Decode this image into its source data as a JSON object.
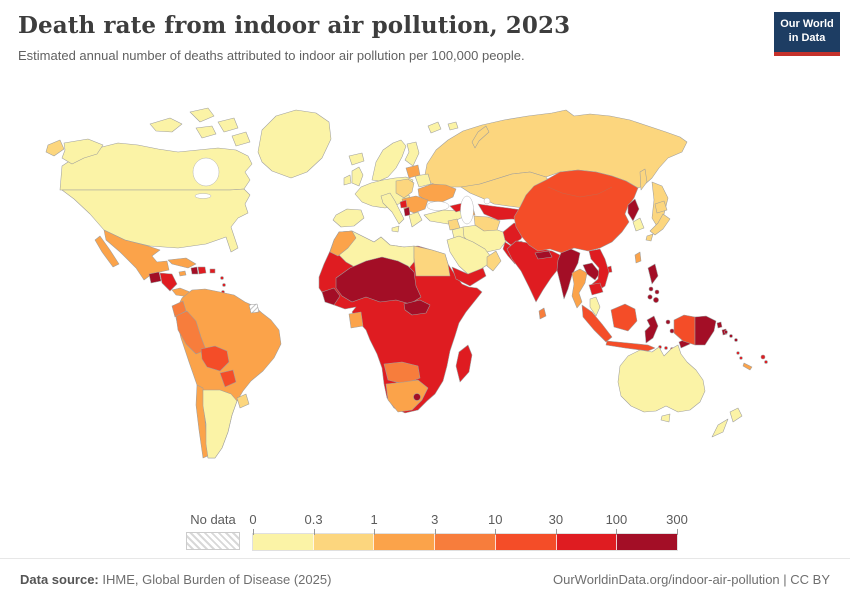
{
  "header": {
    "title": "Death rate from indoor air pollution, 2023",
    "subtitle": "Estimated annual number of deaths attributed to indoor air pollution per 100,000 people.",
    "logo": {
      "line1": "Our World",
      "line2": "in Data",
      "bg": "#1d3d63",
      "accent": "#c5312b"
    }
  },
  "legend": {
    "no_data_label": "No data",
    "ticks": [
      "0",
      "0.3",
      "1",
      "3",
      "10",
      "30",
      "100",
      "300"
    ],
    "colors": [
      "#fbf3a6",
      "#fcd67e",
      "#fba34a",
      "#f77d3c",
      "#f44d28",
      "#df1c21",
      "#a30e26"
    ]
  },
  "footer": {
    "source_label": "Data source:",
    "source_text": " IHME, Global Burden of Disease (2025)",
    "right_text": "OurWorldinData.org/indoor-air-pollution | CC BY"
  },
  "map": {
    "border_color": "#9e9e9e",
    "ocean_color": "#ffffff"
  },
  "chart_data": {
    "type": "heatmap",
    "subtype": "choropleth-world-map",
    "title": "Death rate from indoor air pollution, 2023",
    "unit": "deaths per 100,000 people",
    "year_shown": "2023",
    "bin_edges": [
      0,
      0.3,
      1,
      3,
      10,
      30,
      100,
      300
    ],
    "bin_labels": [
      "0-0.3",
      "0.3-1",
      "1-3",
      "3-10",
      "10-30",
      "30-100",
      "100-300"
    ],
    "no_data_label": "No data",
    "regions": {
      "chukotka-wrap": 1,
      "alaska": 0,
      "canada": 0,
      "usa": 0,
      "greenland": 0,
      "iceland": 0,
      "arctic-islands": 0,
      "svalbard": 0,
      "mexico": 2,
      "guatemala": 6,
      "honduras-nicaragua": 5,
      "costa-rica-panama": 2,
      "cuba": 2,
      "jamaica": 2,
      "haiti": 6,
      "dominican-republic": 5,
      "puerto-rico": 5,
      "antilles": 5,
      "south-america": 2,
      "ecuador": 3,
      "peru": 3,
      "bolivia": 4,
      "paraguay": 4,
      "chile": 2,
      "argentina": 0,
      "uruguay": 1,
      "suriname": "nodata",
      "nordics": 0,
      "denmark": 0,
      "uk-ireland": 0,
      "west-europe": 0,
      "iberia": 0,
      "italy": 0,
      "greece": 0,
      "poland-hungary": 1,
      "baltics": 2,
      "belarus": 0,
      "ukraine": 2,
      "balkans": 2,
      "bosnia": 5,
      "albania": 6,
      "turkey": 0,
      "caucasus-georgia": 5,
      "armenia-azerbaijan": 2,
      "russia": 1,
      "novaya-zemlya": 1,
      "kamchatka": 1,
      "sakhalin": 1,
      "kazakhstan": 1,
      "central-asia": 5,
      "turkmenistan": 1,
      "north-africa": 0,
      "morocco": 2,
      "egypt": 1,
      "sahel": 6,
      "central-african-republic": 6,
      "guinea-coast": 6,
      "africa": 5,
      "gabon": 2,
      "namibia-botswana": 3,
      "south-africa": 2,
      "lesotho": 6,
      "madagascar": 5,
      "syria": 1,
      "iraq": 0,
      "iran": 0,
      "saudi-arabia": 0,
      "yemen": 5,
      "oman": 1,
      "afghanistan": 5,
      "pakistan": 5,
      "india": 5,
      "nepal": 6,
      "bangladesh": 6,
      "sri-lanka": 3,
      "china-mongolia": 4,
      "north-korea": 6,
      "south-korea": 0,
      "japan": 1,
      "taiwan": 2,
      "hainan": 5,
      "myanmar": 6,
      "thailand": 2,
      "laos": 6,
      "vietnam": 5,
      "cambodia": 5,
      "malay-peninsula": 0,
      "sumatra": 4,
      "borneo": 4,
      "java": 4,
      "lesser-sunda": 5,
      "sulawesi": 6,
      "moluccas": 6,
      "timor": 6,
      "west-papua": 4,
      "papua-new-guinea": 6,
      "solomon-islands": 6,
      "philippines": 6,
      "philippines-islands": 6,
      "australia": 0,
      "tasmania": 0,
      "new-zealand": 0,
      "vanuatu": 5,
      "fiji": 5,
      "new-caledonia": 2
    }
  }
}
